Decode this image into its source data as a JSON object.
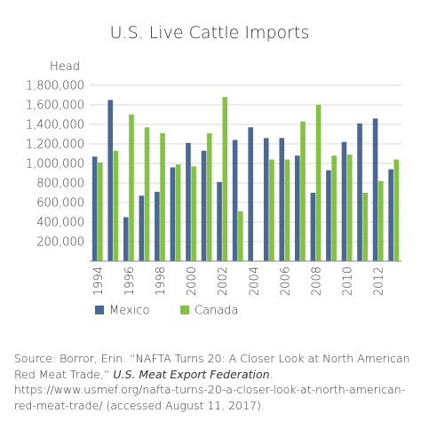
{
  "chart_data": {
    "type": "bar",
    "title": "U.S. Live Cattle Imports",
    "ylabel": "Head",
    "xlabel": "",
    "ylim": [
      0,
      1800000
    ],
    "yticks": [
      200000,
      400000,
      600000,
      800000,
      1000000,
      1200000,
      1400000,
      1600000,
      1800000
    ],
    "ytick_labels": [
      "200,000",
      "400,000",
      "600,000",
      "800,000",
      "1,000,000",
      "1,200,000",
      "1,400,000",
      "1,600,000",
      "1,800,000"
    ],
    "categories": [
      "1994",
      "1995",
      "1996",
      "1997",
      "1998",
      "1999",
      "2000",
      "2001",
      "2002",
      "2003",
      "2004",
      "2005",
      "2006",
      "2007",
      "2008",
      "2009",
      "2010",
      "2011",
      "2012",
      "2013"
    ],
    "xtick_labels": [
      "1994",
      "1996",
      "1998",
      "2000",
      "2002",
      "2004",
      "2006",
      "2008",
      "2010",
      "2012"
    ],
    "grid": true,
    "legend_position": "bottom-left",
    "series": [
      {
        "name": "Mexico",
        "color": "#4a6796",
        "values": [
          1070000,
          1650000,
          450000,
          670000,
          710000,
          960000,
          1210000,
          1130000,
          810000,
          1240000,
          1370000,
          1260000,
          1260000,
          1080000,
          700000,
          930000,
          1220000,
          1410000,
          1460000,
          940000
        ]
      },
      {
        "name": "Canada",
        "color": "#84c341",
        "values": [
          1010000,
          1130000,
          1500000,
          1370000,
          1310000,
          990000,
          970000,
          1310000,
          1680000,
          510000,
          0,
          1040000,
          1040000,
          1430000,
          1600000,
          1080000,
          1090000,
          700000,
          820000,
          1040000
        ]
      }
    ]
  },
  "source": {
    "prefix": "Source: Borror, Erin. “NAFTA Turns 20: A Closer Look at North American Red Meat Trade,” ",
    "journal": "U.S. Meat Export Federation",
    "suffix": ". https://www.usmef.org/nafta-turns-20-a-closer-look-at-north-american-red-meat-trade/ (accessed August 11, 2017)."
  }
}
